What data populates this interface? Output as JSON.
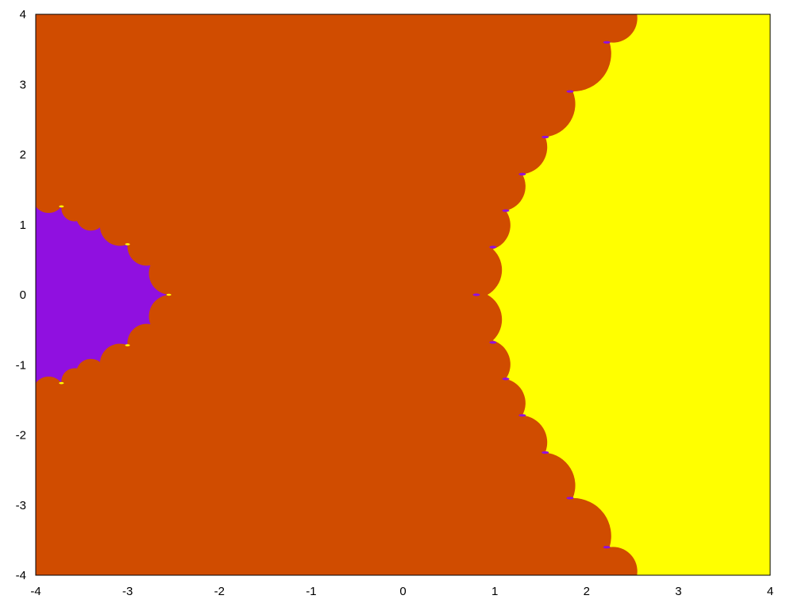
{
  "chart_data": {
    "type": "heatmap",
    "title": "",
    "xlabel": "",
    "ylabel": "",
    "xlim": [
      -4,
      4
    ],
    "ylim": [
      -4,
      4
    ],
    "xticks": [
      "-4",
      "-3",
      "-2",
      "-1",
      "0",
      "1",
      "2",
      "3",
      "4"
    ],
    "yticks": [
      "4",
      "3",
      "2",
      "1",
      "0",
      "-1",
      "-2",
      "-3",
      "-4"
    ],
    "grid": false,
    "legend": "none",
    "colors": {
      "background_region": "#d04c00",
      "left_region": "#9010e0",
      "right_region": "#ffff00",
      "frame": "#000000"
    },
    "regions": [
      {
        "id": "left-basin",
        "color": "#9010e0",
        "boundary": [
          [
            -4.0,
            1.26
          ],
          [
            -3.72,
            1.26
          ],
          [
            -3.55,
            1.05
          ],
          [
            -3.3,
            0.96
          ],
          [
            -3.0,
            0.72
          ],
          [
            -2.75,
            0.42
          ],
          [
            -2.55,
            0.0
          ],
          [
            -2.75,
            -0.42
          ],
          [
            -3.0,
            -0.72
          ],
          [
            -3.3,
            -0.96
          ],
          [
            -3.55,
            -1.05
          ],
          [
            -3.72,
            -1.26
          ],
          [
            -4.0,
            -1.26
          ]
        ],
        "cusps": [
          [
            -2.55,
            0.0
          ],
          [
            -3.0,
            0.72
          ],
          [
            -3.0,
            -0.72
          ],
          [
            -3.72,
            1.26
          ],
          [
            -3.72,
            -1.26
          ]
        ]
      },
      {
        "id": "right-basin",
        "color": "#ffff00",
        "boundary": [
          [
            2.55,
            4.0
          ],
          [
            2.25,
            3.6
          ],
          [
            1.85,
            2.9
          ],
          [
            1.55,
            2.25
          ],
          [
            1.3,
            1.72
          ],
          [
            1.12,
            1.2
          ],
          [
            0.98,
            0.65
          ],
          [
            0.92,
            0.0
          ],
          [
            0.98,
            -0.65
          ],
          [
            1.12,
            -1.2
          ],
          [
            1.3,
            -1.72
          ],
          [
            1.55,
            -2.25
          ],
          [
            1.85,
            -2.9
          ],
          [
            2.25,
            -3.6
          ],
          [
            2.55,
            -4.0
          ],
          [
            4.0,
            -4.0
          ],
          [
            4.0,
            4.0
          ]
        ],
        "cusps": [
          [
            0.8,
            0.0
          ],
          [
            2.22,
            3.6
          ],
          [
            1.82,
            2.9
          ],
          [
            1.55,
            2.25
          ],
          [
            1.3,
            1.72
          ],
          [
            1.12,
            1.2
          ],
          [
            0.98,
            0.68
          ],
          [
            2.22,
            -3.6
          ],
          [
            1.82,
            -2.9
          ],
          [
            1.55,
            -2.25
          ],
          [
            1.3,
            -1.72
          ],
          [
            1.12,
            -1.2
          ],
          [
            0.98,
            -0.68
          ]
        ]
      }
    ]
  }
}
